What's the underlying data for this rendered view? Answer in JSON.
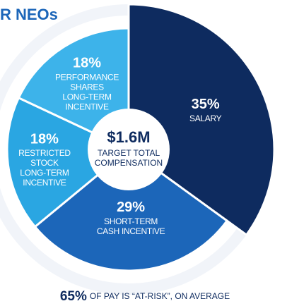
{
  "chart_data": {
    "type": "pie",
    "title": "R NEOs",
    "categories": [
      [
        "SALARY"
      ],
      [
        "SHORT-TERM",
        "CASH INCENTIVE"
      ],
      [
        "RESTRICTED",
        "STOCK",
        "LONG-TERM",
        "INCENTIVE"
      ],
      [
        "PERFORMANCE",
        "SHARES",
        "LONG-TERM",
        "INCENTIVE"
      ]
    ],
    "values": [
      35,
      29,
      18,
      18
    ],
    "value_labels": [
      "35%",
      "29%",
      "18%",
      "18%"
    ],
    "colors": [
      "#0e2b5f",
      "#1c66b9",
      "#2aa6e2",
      "#3db3ea"
    ],
    "center_value": "$1.6M",
    "center_text": [
      "TARGET TOTAL",
      "COMPENSATION"
    ],
    "footnote": {
      "highlight": "65%",
      "text": "OF PAY IS “AT-RISK”, ON AVERAGE"
    }
  }
}
